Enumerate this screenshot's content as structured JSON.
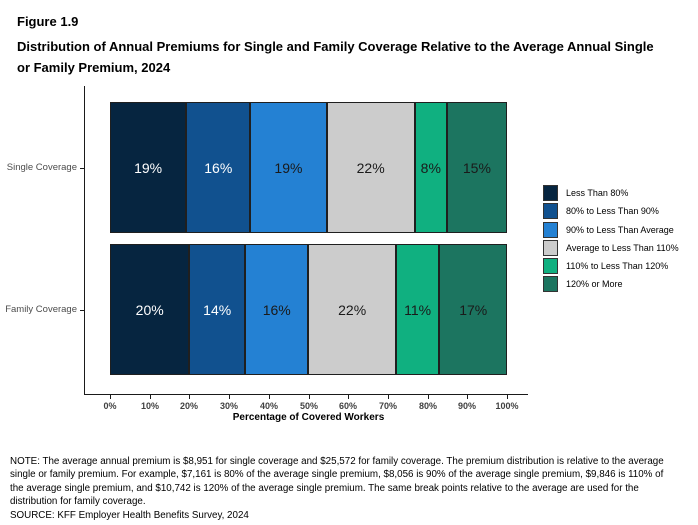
{
  "header": {
    "figure_label": "Figure 1.9",
    "title": "Distribution of Annual Premiums for Single and Family Coverage Relative to the Average Annual Single or Family Premium, 2024"
  },
  "chart_data": {
    "type": "bar",
    "orientation": "horizontal",
    "stacked": true,
    "grid": false,
    "legend_position": "right",
    "categories": [
      "Single Coverage",
      "Family Coverage"
    ],
    "series": [
      {
        "name": "Less Than 80%",
        "color": "#062540",
        "label_color": "#ffffff",
        "values": [
          19,
          20
        ]
      },
      {
        "name": "80% to Less Than 90%",
        "color": "#11518f",
        "label_color": "#ffffff",
        "values": [
          16,
          14
        ]
      },
      {
        "name": "90% to Less Than Average",
        "color": "#2481d3",
        "label_color": "#1a1a1a",
        "values": [
          19,
          16
        ]
      },
      {
        "name": "Average to Less Than 110%",
        "color": "#cccccc",
        "label_color": "#1a1a1a",
        "values": [
          22,
          22
        ]
      },
      {
        "name": "110% to Less Than 120%",
        "color": "#10b080",
        "label_color": "#1a1a1a",
        "values": [
          8,
          11
        ]
      },
      {
        "name": "120% or More",
        "color": "#1c7560",
        "label_color": "#1a1a1a",
        "values": [
          15,
          17
        ]
      }
    ],
    "value_suffix": "%",
    "xlabel": "Percentage of Covered Workers",
    "x_ticks": [
      "0%",
      "10%",
      "20%",
      "30%",
      "40%",
      "50%",
      "60%",
      "70%",
      "80%",
      "90%",
      "100%"
    ],
    "xlim": [
      0,
      100
    ]
  },
  "footer": {
    "note": "NOTE: The average annual premium is $8,951 for single coverage and $25,572 for family coverage. The premium distribution is relative to the average single or family premium. For example, $7,161 is 80% of the average single premium, $8,056 is 90% of the average single premium, $9,846 is 110% of the average single premium, and $10,742 is 120% of the average single premium. The same break points relative to the average are used for the distribution for family coverage.",
    "source": "SOURCE: KFF Employer Health Benefits Survey, 2024"
  }
}
